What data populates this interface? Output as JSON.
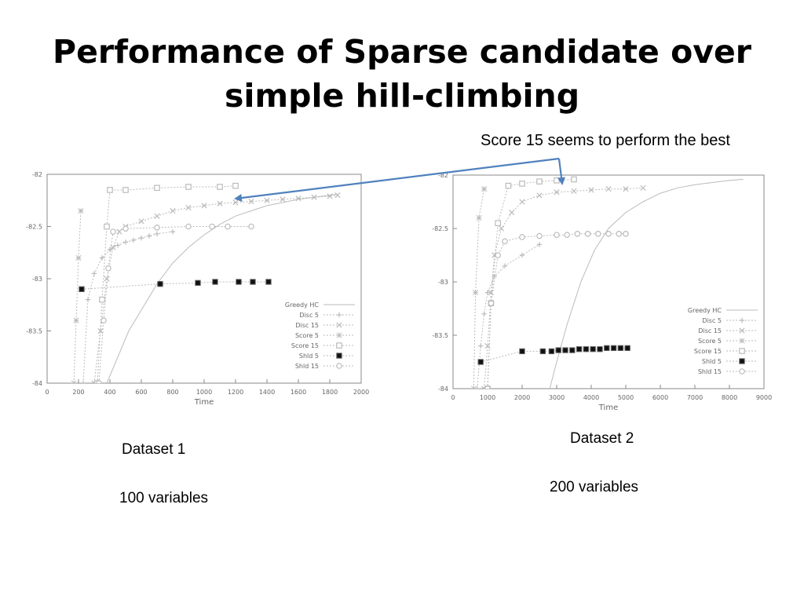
{
  "slide": {
    "title": "Performance of Sparse candidate over simple hill-climbing",
    "title_line1": "Performance of Sparse candidate over",
    "title_line2": "simple hill-climbing",
    "callout": "Score 15 seems to perform the best",
    "dataset1_name": "Dataset 1",
    "dataset1_vars": "100 variables",
    "dataset2_name": "Dataset 2",
    "dataset2_vars": "200 variables"
  },
  "colors": {
    "arrow": "#4f81bd",
    "axis": "#888888",
    "series": "#bbbbbb",
    "shd": "#111111"
  },
  "chart_data": [
    {
      "type": "line",
      "xlabel": "Time",
      "ylabel": "",
      "xlim": [
        0,
        2000
      ],
      "ylim": [
        -84,
        -82
      ],
      "xticks": [
        0,
        200,
        400,
        600,
        800,
        1000,
        1200,
        1400,
        1600,
        1800,
        2000
      ],
      "yticks": [
        -82,
        -82.5,
        -83,
        -83.5,
        -84
      ],
      "legend_position": "bottom-right",
      "series": [
        {
          "name": "Greedy HC",
          "marker": "none",
          "x": [
            380,
            450,
            520,
            600,
            700,
            800,
            900,
            1000,
            1100,
            1200,
            1300,
            1400,
            1500,
            1600,
            1700,
            1800,
            1850
          ],
          "y": [
            -84,
            -83.75,
            -83.5,
            -83.3,
            -83.05,
            -82.85,
            -82.7,
            -82.58,
            -82.48,
            -82.4,
            -82.35,
            -82.3,
            -82.27,
            -82.24,
            -82.22,
            -82.2,
            -82.19
          ]
        },
        {
          "name": "Disc 5",
          "marker": "plus",
          "x": [
            230,
            260,
            300,
            350,
            400,
            450,
            500,
            550,
            600,
            650,
            700,
            800
          ],
          "y": [
            -84,
            -83.2,
            -82.95,
            -82.8,
            -82.72,
            -82.68,
            -82.65,
            -82.63,
            -82.61,
            -82.59,
            -82.57,
            -82.55
          ]
        },
        {
          "name": "Disc 15",
          "marker": "x",
          "x": [
            300,
            340,
            380,
            420,
            460,
            500,
            600,
            700,
            800,
            900,
            1000,
            1100,
            1200,
            1300,
            1400,
            1500,
            1600,
            1700,
            1800,
            1850
          ],
          "y": [
            -84,
            -83.5,
            -83,
            -82.7,
            -82.55,
            -82.5,
            -82.45,
            -82.4,
            -82.35,
            -82.32,
            -82.3,
            -82.28,
            -82.27,
            -82.26,
            -82.25,
            -82.24,
            -82.23,
            -82.22,
            -82.21,
            -82.2
          ]
        },
        {
          "name": "Score 5",
          "marker": "star",
          "x": [
            170,
            185,
            200,
            215
          ],
          "y": [
            -84,
            -83.4,
            -82.8,
            -82.35
          ]
        },
        {
          "name": "Score 15",
          "marker": "square-open",
          "x": [
            320,
            350,
            380,
            400,
            500,
            700,
            900,
            1100,
            1200
          ],
          "y": [
            -84,
            -83.2,
            -82.5,
            -82.15,
            -82.15,
            -82.13,
            -82.12,
            -82.12,
            -82.11
          ]
        },
        {
          "name": "Shld 5",
          "marker": "square-filled",
          "x": [
            220,
            720,
            960,
            1070,
            1220,
            1310,
            1410
          ],
          "y": [
            -83.1,
            -83.05,
            -83.04,
            -83.03,
            -83.03,
            -83.03,
            -83.03
          ]
        },
        {
          "name": "Shld 15",
          "marker": "circle-open",
          "x": [
            330,
            360,
            390,
            420,
            500,
            700,
            900,
            1050,
            1150,
            1300
          ],
          "y": [
            -84,
            -83.4,
            -82.9,
            -82.55,
            -82.52,
            -82.51,
            -82.5,
            -82.5,
            -82.5,
            -82.5
          ]
        }
      ]
    },
    {
      "type": "line",
      "xlabel": "Time",
      "ylabel": "",
      "xlim": [
        0,
        9000
      ],
      "ylim": [
        -84,
        -82
      ],
      "xticks": [
        0,
        1000,
        2000,
        3000,
        4000,
        5000,
        6000,
        7000,
        8000,
        9000
      ],
      "yticks": [
        -82,
        -82.5,
        -83,
        -83.5,
        -84
      ],
      "legend_position": "bottom-right",
      "series": [
        {
          "name": "Greedy HC",
          "marker": "none",
          "x": [
            2800,
            3000,
            3300,
            3700,
            4100,
            4500,
            5000,
            5500,
            6000,
            6500,
            7000,
            7500,
            8000,
            8400
          ],
          "y": [
            -84,
            -83.75,
            -83.4,
            -83.0,
            -82.7,
            -82.5,
            -82.35,
            -82.25,
            -82.17,
            -82.12,
            -82.09,
            -82.07,
            -82.05,
            -82.04
          ]
        },
        {
          "name": "Disc 5",
          "marker": "plus",
          "x": [
            700,
            800,
            900,
            1000,
            1200,
            1500,
            2000,
            2500
          ],
          "y": [
            -84,
            -83.6,
            -83.3,
            -83.1,
            -82.95,
            -82.85,
            -82.75,
            -82.65
          ]
        },
        {
          "name": "Disc 15",
          "marker": "x",
          "x": [
            900,
            1000,
            1100,
            1200,
            1400,
            1700,
            2000,
            2500,
            3000,
            3500,
            4000,
            4500,
            5000,
            5500
          ],
          "y": [
            -84,
            -83.6,
            -83.1,
            -82.75,
            -82.5,
            -82.35,
            -82.25,
            -82.19,
            -82.16,
            -82.15,
            -82.14,
            -82.13,
            -82.13,
            -82.12
          ]
        },
        {
          "name": "Score 5",
          "marker": "star",
          "x": [
            600,
            650,
            750,
            900
          ],
          "y": [
            -84,
            -83.1,
            -82.4,
            -82.13
          ]
        },
        {
          "name": "Score 15",
          "marker": "square-open",
          "x": [
            1000,
            1100,
            1300,
            1600,
            2000,
            2500,
            3000,
            3500
          ],
          "y": [
            -84,
            -83.2,
            -82.45,
            -82.1,
            -82.08,
            -82.06,
            -82.05,
            -82.04
          ]
        },
        {
          "name": "Shld 5",
          "marker": "square-filled",
          "x": [
            800,
            2000,
            2600,
            2850,
            3050,
            3250,
            3450,
            3650,
            3850,
            4050,
            4250,
            4450,
            4650,
            4850,
            5050
          ],
          "y": [
            -83.75,
            -83.65,
            -83.65,
            -83.65,
            -83.64,
            -83.64,
            -83.64,
            -83.63,
            -83.63,
            -83.63,
            -83.63,
            -83.62,
            -83.62,
            -83.62,
            -83.62
          ]
        },
        {
          "name": "Shld 15",
          "marker": "circle-open",
          "x": [
            1000,
            1100,
            1300,
            1500,
            2000,
            2500,
            3000,
            3300,
            3600,
            3900,
            4200,
            4500,
            4800,
            5000
          ],
          "y": [
            -84,
            -83.2,
            -82.75,
            -82.62,
            -82.58,
            -82.57,
            -82.56,
            -82.56,
            -82.55,
            -82.55,
            -82.55,
            -82.55,
            -82.55,
            -82.55
          ]
        }
      ]
    }
  ]
}
